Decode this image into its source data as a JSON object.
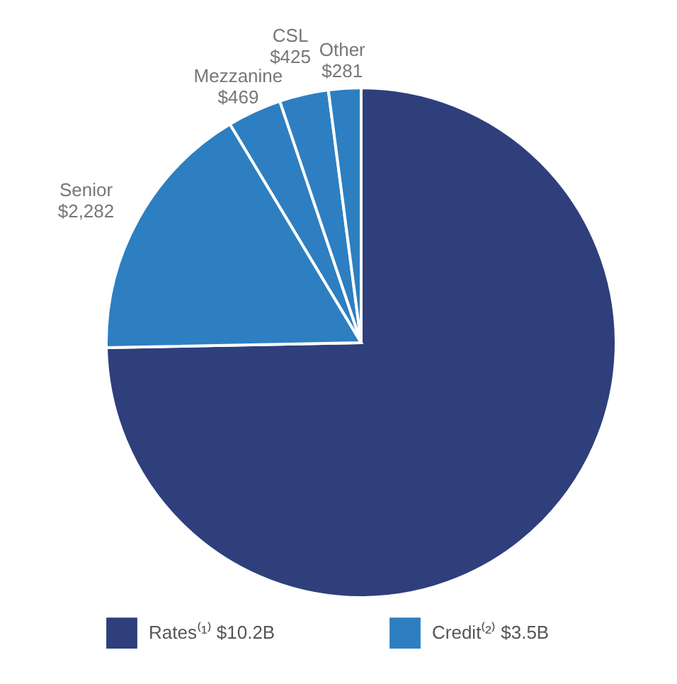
{
  "chart_data": {
    "type": "pie",
    "categories": [
      null,
      "Senior",
      "Mezzanine",
      "CSL",
      "Other"
    ],
    "values": [
      10200,
      2282,
      469,
      425,
      281
    ],
    "value_labels": [
      null,
      "$2,282",
      "$469",
      "$425",
      "$281"
    ],
    "colors": [
      "#2e3f7c",
      "#2d7fc1",
      "#2d7fc1",
      "#2d7fc1",
      "#2d7fc1"
    ],
    "annotations": [
      "Rates⁽¹⁾ $10.2B",
      "Credit⁽²⁾ $3.5B"
    ]
  }
}
